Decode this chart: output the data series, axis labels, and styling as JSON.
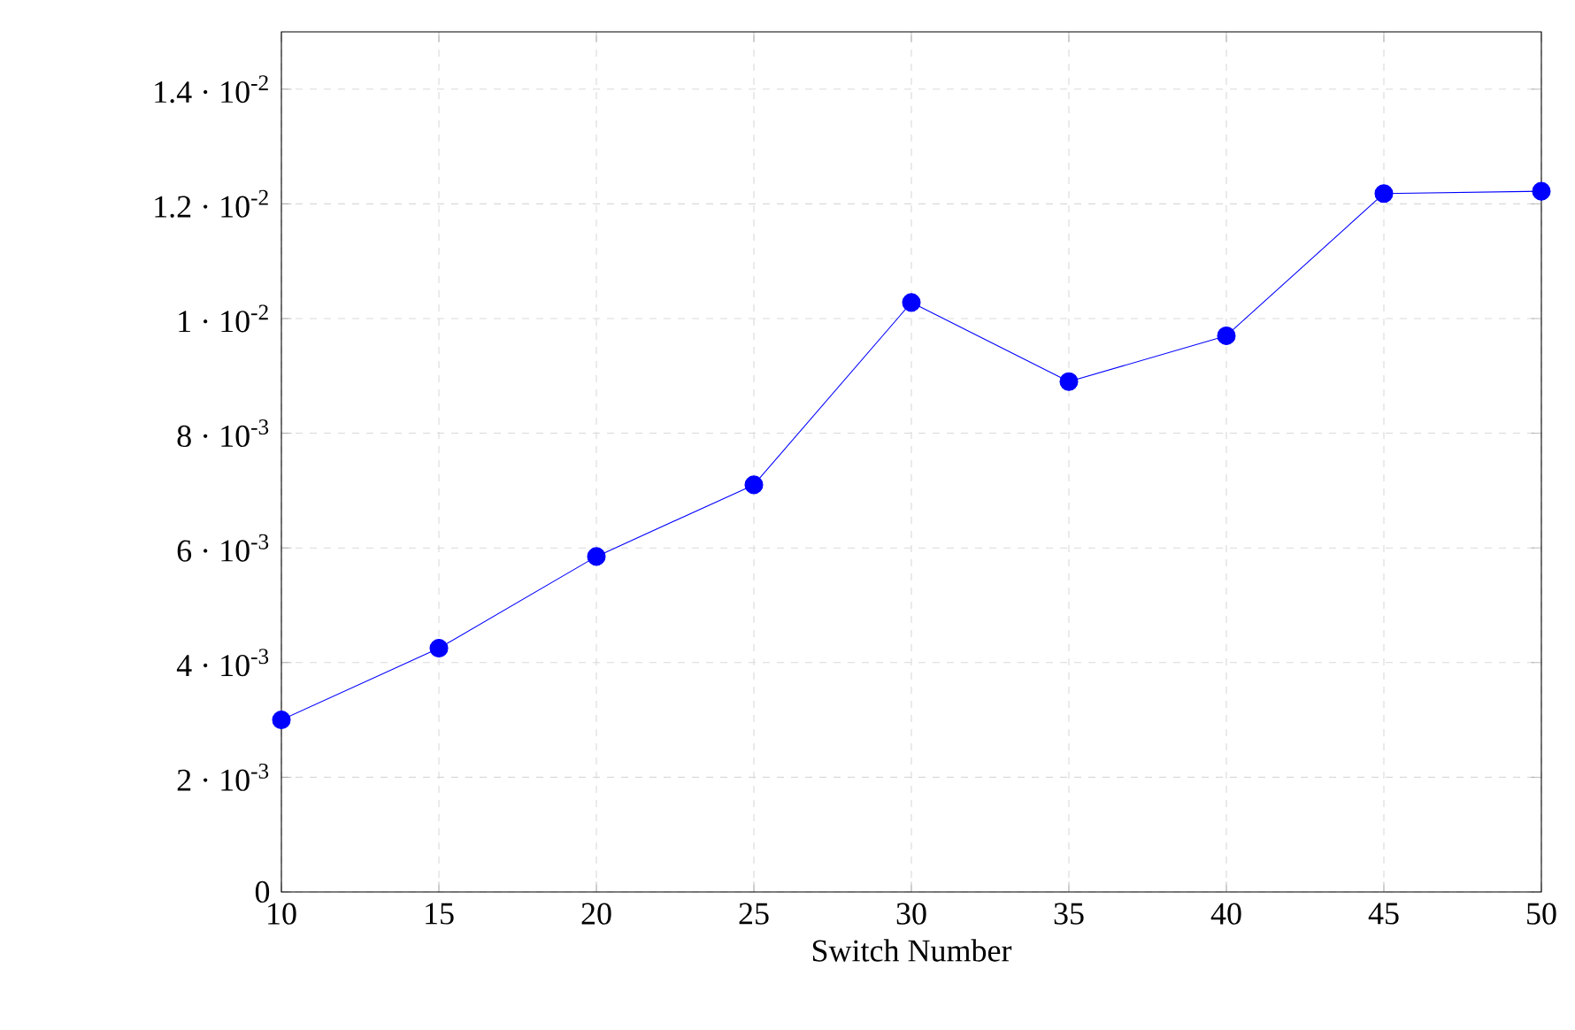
{
  "chart_data": {
    "type": "line",
    "xlabel": "Switch Number",
    "x": [
      10,
      15,
      20,
      25,
      30,
      35,
      40,
      45,
      50
    ],
    "series": [
      {
        "color": "#0000ff",
        "values": [
          0.003,
          0.00425,
          0.00585,
          0.0071,
          0.01028,
          0.0089,
          0.0097,
          0.01218,
          0.01222
        ]
      }
    ],
    "xlim": [
      10,
      50
    ],
    "xticks": [
      10,
      15,
      20,
      25,
      30,
      35,
      40,
      45,
      50
    ],
    "ylim": [
      0,
      0.015
    ],
    "yticks": [
      0,
      {
        "value": 0.002,
        "label": "2 · 10$^{-3}$"
      },
      {
        "value": 0.004,
        "label": "4 · 10$^{-3}$"
      },
      {
        "value": 0.006,
        "label": "6 · 10$^{-3}$"
      },
      {
        "value": 0.008,
        "label": "8 · 10$^{-3}$"
      },
      {
        "value": 0.01,
        "label": "1 · 10$^{-2}$"
      },
      {
        "value": 0.012,
        "label": "1.2 · 10$^{-2}$"
      },
      {
        "value": 0.014,
        "label": "1.4 · 10$^{-2}$"
      }
    ],
    "grid": true,
    "marker": "circle",
    "line_style": "solid"
  }
}
